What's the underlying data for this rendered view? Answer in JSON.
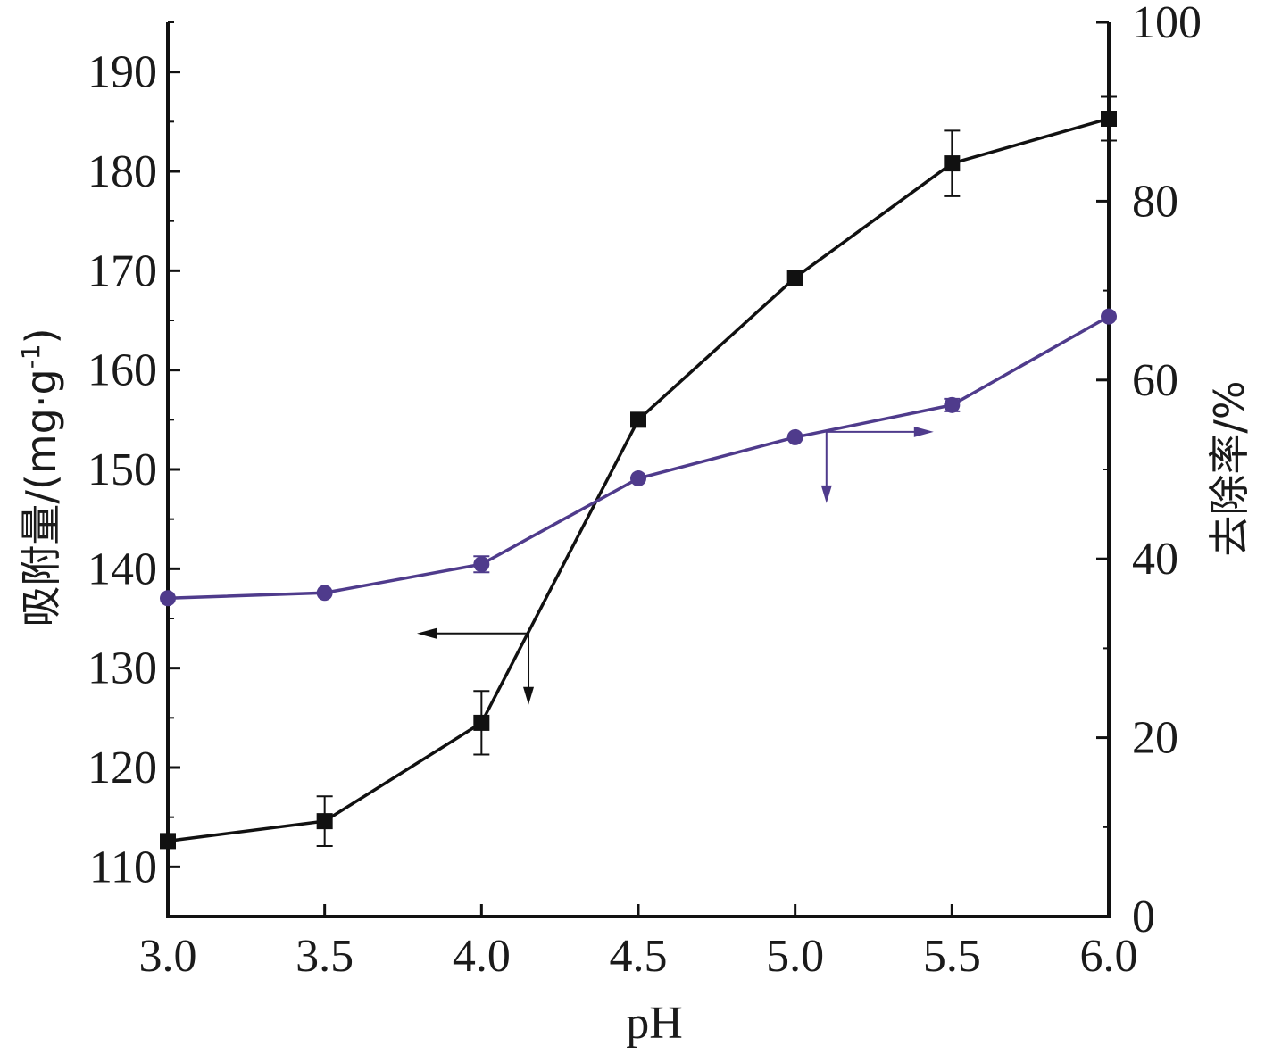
{
  "chart_data": {
    "type": "line",
    "xlabel": "pH",
    "ylabel_left": "吸附量/(mg·g",
    "ylabel_left_sup": "-1",
    "ylabel_left_close": ")",
    "ylabel_right": "去除率/%",
    "x": [
      3.0,
      3.5,
      4.0,
      4.5,
      5.0,
      5.5,
      6.0
    ],
    "x_tick_labels": [
      "3.0",
      "3.5",
      "4.0",
      "4.5",
      "5.0",
      "5.5",
      "6.0"
    ],
    "xlim": [
      3.0,
      6.0
    ],
    "ylim_left": [
      105,
      195
    ],
    "yticks_left": [
      110,
      120,
      130,
      140,
      150,
      160,
      170,
      180,
      190
    ],
    "ylim_right": [
      0,
      100
    ],
    "yticks_right": [
      0,
      20,
      40,
      60,
      80,
      100
    ],
    "grid": false,
    "series": [
      {
        "axis": "left",
        "marker": "square",
        "color": "#111111",
        "values": [
          112.6,
          114.6,
          124.5,
          155.0,
          169.3,
          180.8,
          185.3
        ],
        "errors": [
          0,
          2.5,
          3.2,
          0,
          0,
          3.3,
          2.2
        ]
      },
      {
        "axis": "right",
        "marker": "circle",
        "color": "#4f3b8c",
        "values": [
          35.6,
          36.2,
          39.4,
          49.0,
          53.6,
          57.2,
          67.1
        ],
        "errors": [
          0,
          0,
          0.9,
          0,
          0,
          0.7,
          0
        ]
      }
    ],
    "annotations": [
      {
        "series": 0,
        "points_to": "left-axis",
        "x": 4.15,
        "y_left": 133.5
      },
      {
        "series": 1,
        "points_to": "right-axis",
        "x": 5.1,
        "y_right": 54.2
      }
    ]
  }
}
